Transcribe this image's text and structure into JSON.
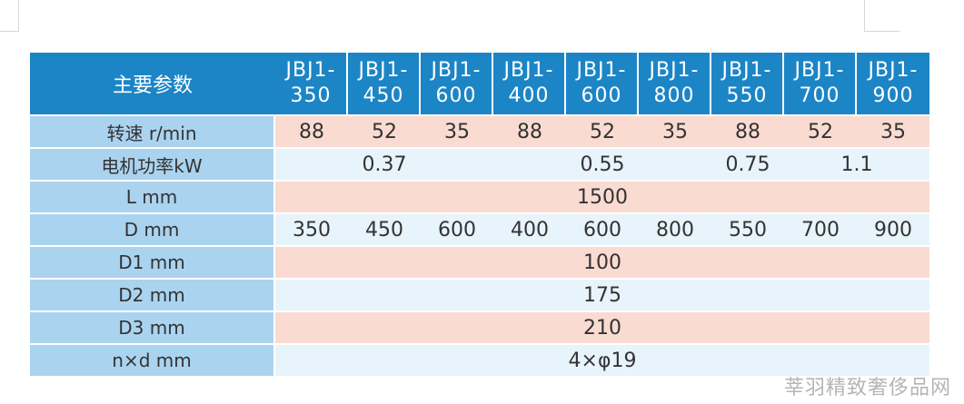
{
  "table": {
    "header_label": "主要参数",
    "models": [
      [
        "JBJ1-",
        "350"
      ],
      [
        "JBJ1-",
        "450"
      ],
      [
        "JBJ1-",
        "600"
      ],
      [
        "JBJ1-",
        "400"
      ],
      [
        "JBJ1-",
        "600"
      ],
      [
        "JBJ1-",
        "800"
      ],
      [
        "JBJ1-",
        "550"
      ],
      [
        "JBJ1-",
        "700"
      ],
      [
        "JBJ1-",
        "900"
      ]
    ],
    "rows": {
      "speed": {
        "label": "转速 r/min",
        "values": [
          "88",
          "52",
          "35",
          "88",
          "52",
          "35",
          "88",
          "52",
          "35"
        ]
      },
      "power": {
        "label": "电机功率kW",
        "values": [
          "0.37",
          "0.55",
          "0.75",
          "1.1"
        ]
      },
      "L": {
        "label": "L mm",
        "value": "1500"
      },
      "D": {
        "label": "D mm",
        "values": [
          "350",
          "450",
          "600",
          "400",
          "600",
          "800",
          "550",
          "700",
          "900"
        ]
      },
      "D1": {
        "label": "D1 mm",
        "value": "100"
      },
      "D2": {
        "label": "D2 mm",
        "value": "175"
      },
      "D3": {
        "label": "D3 mm",
        "value": "210"
      },
      "nxd": {
        "label": "n×d  mm",
        "value": "4×φ19"
      }
    }
  },
  "watermark": "莘羽精致奢侈品网",
  "colors": {
    "header_bg": "#1c85c6",
    "label_bg": "#aad3ef",
    "pink_row": "#fadbd2",
    "light_row": "#e8f4fb"
  }
}
